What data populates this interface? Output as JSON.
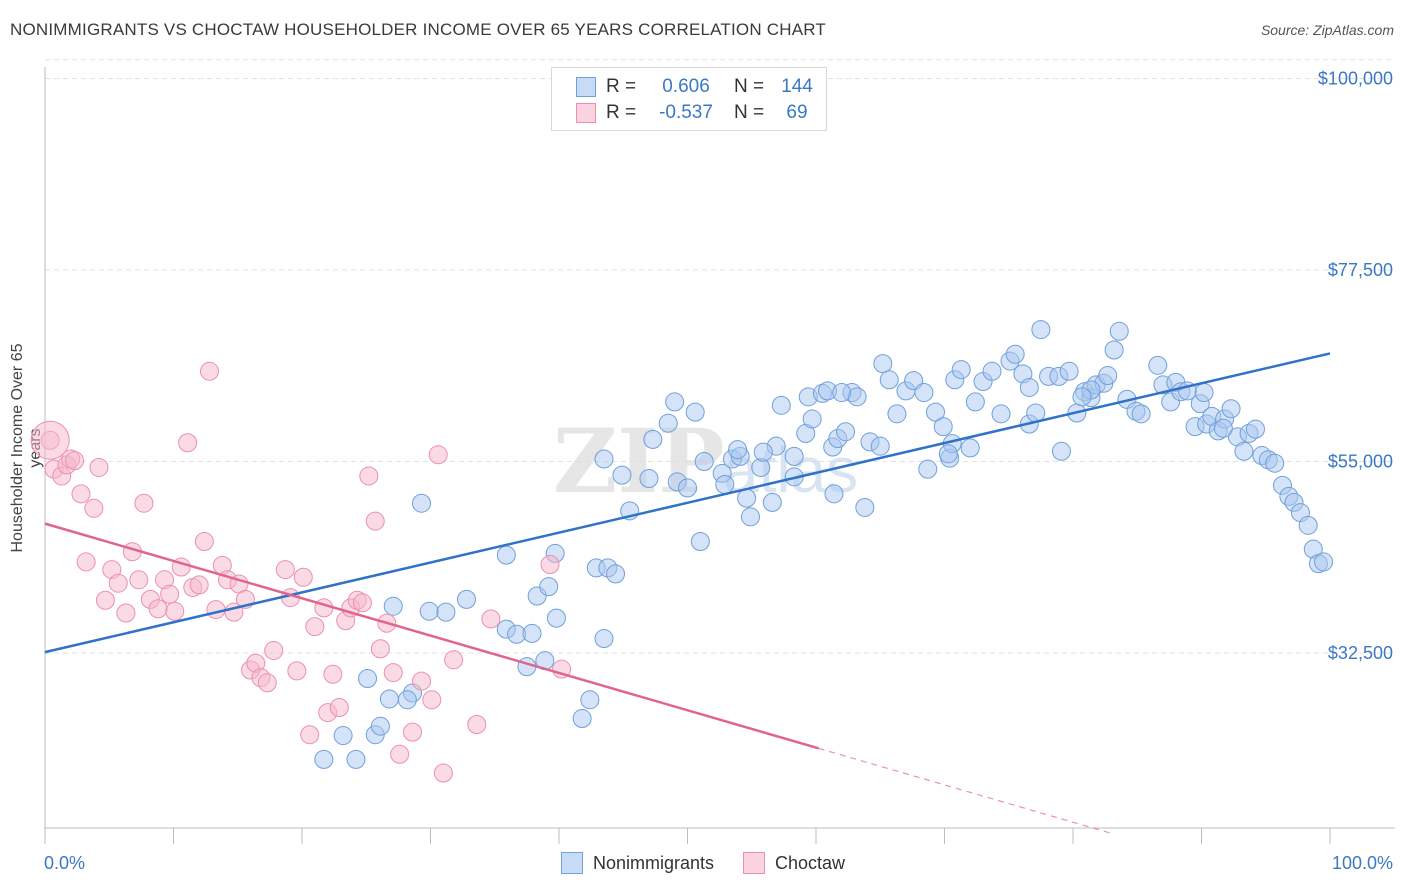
{
  "title": "NONIMMIGRANTS VS CHOCTAW HOUSEHOLDER INCOME OVER 65 YEARS CORRELATION CHART",
  "source": "Source: ZipAtlas.com",
  "legend_top": {
    "rows": [
      {
        "r_label": "R =",
        "r_value": "0.606",
        "n_label": "N =",
        "n_value": "144",
        "color": "#a9c8ef"
      },
      {
        "r_label": "R =",
        "r_value": "-0.537",
        "n_label": "N =",
        "n_value": "69",
        "color": "#f6b8cc"
      }
    ]
  },
  "legend_bottom": [
    {
      "label": "Nonimmigrants",
      "color": "#a9c8ef"
    },
    {
      "label": "Choctaw",
      "color": "#f6b8cc"
    }
  ],
  "chart_data": {
    "type": "scatter",
    "title": "NONIMMIGRANTS VS CHOCTAW HOUSEHOLDER INCOME OVER 65 YEARS CORRELATION CHART",
    "xlabel": "",
    "ylabel": "Householder Income Over 65 years",
    "xlim": [
      0,
      100
    ],
    "ylim": [
      13000,
      103000
    ],
    "x_tick_labels": {
      "left": "0.0%",
      "right": "100.0%"
    },
    "y_ticks": [
      {
        "value": 100000,
        "label": "$100,000"
      },
      {
        "value": 77500,
        "label": "$77,500"
      },
      {
        "value": 55000,
        "label": "$55,000"
      },
      {
        "value": 32500,
        "label": "$32,500"
      }
    ],
    "grid": true,
    "legend_position": "top-center",
    "watermark": "ZIPatlas",
    "series": [
      {
        "name": "Nonimmigrants",
        "color": "#a9c8ef",
        "stroke": "#6fa0dc",
        "trend": {
          "x0": 0,
          "y0": 32600,
          "x1": 100,
          "y1": 67700,
          "color": "#2f72c8"
        },
        "points": [
          [
            21.7,
            20.0
          ],
          [
            24.2,
            20.0
          ],
          [
            23.2,
            22.8
          ],
          [
            25.7,
            22.9
          ],
          [
            26.1,
            23.9
          ],
          [
            25.1,
            29.5
          ],
          [
            26.8,
            27.1
          ],
          [
            28.6,
            27.8
          ],
          [
            28.2,
            27.0
          ],
          [
            27.1,
            38.0
          ],
          [
            29.9,
            37.4
          ],
          [
            31.2,
            37.3
          ],
          [
            32.8,
            38.8
          ],
          [
            35.9,
            35.3
          ],
          [
            36.7,
            34.7
          ],
          [
            37.9,
            34.8
          ],
          [
            37.5,
            30.9
          ],
          [
            38.3,
            39.2
          ],
          [
            39.2,
            40.3
          ],
          [
            39.8,
            36.6
          ],
          [
            38.9,
            31.6
          ],
          [
            43.5,
            34.2
          ],
          [
            41.8,
            24.8
          ],
          [
            42.4,
            27.0
          ],
          [
            29.3,
            50.1
          ],
          [
            35.9,
            44.0
          ],
          [
            39.7,
            44.2
          ],
          [
            42.9,
            42.5
          ],
          [
            43.8,
            42.5
          ],
          [
            44.4,
            41.8
          ],
          [
            45.5,
            49.2
          ],
          [
            43.5,
            55.3
          ],
          [
            44.9,
            53.4
          ],
          [
            47.0,
            53.0
          ],
          [
            47.3,
            57.6
          ],
          [
            48.5,
            59.5
          ],
          [
            49.0,
            62.0
          ],
          [
            50.6,
            60.8
          ],
          [
            49.2,
            52.6
          ],
          [
            50.0,
            51.9
          ],
          [
            51.0,
            45.6
          ],
          [
            51.3,
            55.0
          ],
          [
            52.7,
            53.6
          ],
          [
            53.5,
            55.3
          ],
          [
            54.1,
            55.6
          ],
          [
            54.6,
            50.7
          ],
          [
            54.9,
            48.5
          ],
          [
            55.7,
            54.3
          ],
          [
            56.6,
            50.2
          ],
          [
            56.9,
            56.8
          ],
          [
            57.3,
            61.6
          ],
          [
            58.3,
            53.2
          ],
          [
            58.3,
            55.6
          ],
          [
            59.2,
            58.3
          ],
          [
            59.4,
            62.6
          ],
          [
            59.7,
            60.0
          ],
          [
            60.5,
            63.0
          ],
          [
            60.9,
            63.3
          ],
          [
            61.4,
            51.2
          ],
          [
            61.3,
            56.7
          ],
          [
            61.7,
            57.7
          ],
          [
            62.3,
            58.5
          ],
          [
            62.8,
            63.1
          ],
          [
            63.2,
            62.6
          ],
          [
            63.8,
            49.6
          ],
          [
            64.2,
            57.3
          ],
          [
            65.0,
            56.8
          ],
          [
            65.2,
            66.5
          ],
          [
            65.7,
            64.6
          ],
          [
            66.3,
            60.6
          ],
          [
            67.0,
            63.3
          ],
          [
            67.6,
            64.5
          ],
          [
            68.4,
            63.1
          ],
          [
            68.7,
            54.1
          ],
          [
            69.3,
            60.8
          ],
          [
            69.9,
            59.1
          ],
          [
            70.4,
            55.4
          ],
          [
            70.6,
            57.1
          ],
          [
            70.8,
            64.6
          ],
          [
            71.3,
            65.8
          ],
          [
            72.0,
            56.6
          ],
          [
            72.4,
            62.0
          ],
          [
            73.0,
            64.4
          ],
          [
            73.7,
            65.6
          ],
          [
            74.4,
            60.6
          ],
          [
            75.1,
            66.8
          ],
          [
            75.5,
            67.6
          ],
          [
            76.1,
            65.3
          ],
          [
            76.6,
            59.4
          ],
          [
            77.1,
            60.7
          ],
          [
            77.5,
            70.5
          ],
          [
            78.1,
            65.0
          ],
          [
            78.9,
            65.0
          ],
          [
            79.1,
            56.2
          ],
          [
            79.7,
            65.6
          ],
          [
            80.3,
            60.7
          ],
          [
            80.9,
            63.2
          ],
          [
            81.4,
            62.5
          ],
          [
            81.8,
            64.0
          ],
          [
            82.4,
            64.2
          ],
          [
            82.7,
            65.1
          ],
          [
            83.2,
            68.1
          ],
          [
            83.6,
            70.3
          ],
          [
            84.2,
            62.3
          ],
          [
            84.9,
            60.9
          ],
          [
            85.3,
            60.6
          ],
          [
            86.6,
            66.3
          ],
          [
            87.0,
            64.0
          ],
          [
            87.6,
            62.0
          ],
          [
            88.0,
            64.3
          ],
          [
            88.4,
            63.2
          ],
          [
            88.9,
            63.3
          ],
          [
            89.5,
            59.1
          ],
          [
            89.9,
            61.8
          ],
          [
            90.4,
            59.4
          ],
          [
            90.8,
            60.3
          ],
          [
            91.3,
            58.6
          ],
          [
            91.8,
            60.0
          ],
          [
            92.3,
            61.2
          ],
          [
            92.8,
            57.9
          ],
          [
            93.3,
            56.2
          ],
          [
            93.7,
            58.3
          ],
          [
            94.2,
            58.8
          ],
          [
            94.7,
            55.7
          ],
          [
            95.2,
            55.2
          ],
          [
            95.7,
            54.8
          ],
          [
            96.3,
            52.2
          ],
          [
            96.8,
            50.9
          ],
          [
            97.2,
            50.2
          ],
          [
            97.7,
            49.0
          ],
          [
            98.3,
            47.5
          ],
          [
            98.7,
            44.7
          ],
          [
            99.1,
            43.0
          ],
          [
            99.5,
            43.2
          ],
          [
            90.2,
            63.1
          ],
          [
            91.7,
            58.9
          ],
          [
            52.9,
            52.3
          ],
          [
            55.9,
            56.1
          ],
          [
            53.9,
            56.4
          ],
          [
            62.0,
            63.1
          ],
          [
            70.3,
            55.9
          ],
          [
            76.6,
            63.7
          ],
          [
            81.4,
            63.4
          ],
          [
            80.7,
            62.6
          ]
        ]
      },
      {
        "name": "Choctaw",
        "color": "#f6b8cc",
        "stroke": "#ec8fae",
        "trend": {
          "x0": 0,
          "y0": 47700,
          "x1": 60.2,
          "y1": 21300,
          "dashed_to_x": 83,
          "dashed_to_y": 11300,
          "color": "#e0648e"
        },
        "points": [
          [
            0.4,
            57.5
          ],
          [
            0.7,
            54.1
          ],
          [
            1.3,
            53.3
          ],
          [
            1.7,
            54.6
          ],
          [
            2.0,
            55.3
          ],
          [
            2.3,
            55.1
          ],
          [
            2.8,
            51.2
          ],
          [
            3.2,
            43.2
          ],
          [
            3.8,
            49.5
          ],
          [
            4.2,
            54.3
          ],
          [
            4.7,
            38.7
          ],
          [
            5.2,
            42.3
          ],
          [
            5.7,
            40.7
          ],
          [
            6.3,
            37.2
          ],
          [
            6.8,
            44.4
          ],
          [
            7.3,
            41.1
          ],
          [
            7.7,
            50.1
          ],
          [
            8.2,
            38.8
          ],
          [
            8.8,
            37.7
          ],
          [
            9.3,
            41.1
          ],
          [
            9.7,
            39.4
          ],
          [
            10.1,
            37.4
          ],
          [
            10.6,
            42.6
          ],
          [
            11.1,
            57.2
          ],
          [
            11.5,
            40.2
          ],
          [
            12.0,
            40.5
          ],
          [
            12.4,
            45.6
          ],
          [
            12.8,
            65.6
          ],
          [
            13.3,
            37.6
          ],
          [
            13.8,
            42.8
          ],
          [
            14.2,
            41.1
          ],
          [
            14.7,
            37.3
          ],
          [
            15.1,
            40.6
          ],
          [
            15.6,
            38.8
          ],
          [
            16.0,
            30.5
          ],
          [
            16.4,
            31.3
          ],
          [
            16.8,
            29.6
          ],
          [
            17.3,
            29.0
          ],
          [
            17.8,
            32.8
          ],
          [
            18.7,
            42.3
          ],
          [
            19.1,
            39.0
          ],
          [
            19.6,
            30.4
          ],
          [
            20.1,
            41.4
          ],
          [
            20.6,
            22.9
          ],
          [
            21.0,
            35.6
          ],
          [
            21.7,
            37.8
          ],
          [
            22.0,
            25.5
          ],
          [
            22.4,
            30.0
          ],
          [
            22.9,
            26.1
          ],
          [
            23.4,
            36.3
          ],
          [
            23.8,
            37.8
          ],
          [
            24.3,
            38.7
          ],
          [
            24.7,
            38.4
          ],
          [
            25.2,
            53.3
          ],
          [
            25.7,
            48.0
          ],
          [
            26.1,
            33.0
          ],
          [
            26.6,
            36.0
          ],
          [
            27.1,
            30.2
          ],
          [
            27.6,
            20.6
          ],
          [
            28.6,
            23.2
          ],
          [
            29.3,
            29.2
          ],
          [
            30.1,
            27.0
          ],
          [
            30.6,
            55.8
          ],
          [
            31.0,
            18.4
          ],
          [
            31.8,
            31.7
          ],
          [
            33.6,
            24.1
          ],
          [
            34.7,
            36.5
          ],
          [
            39.3,
            42.9
          ],
          [
            40.2,
            30.6
          ]
        ]
      }
    ]
  }
}
